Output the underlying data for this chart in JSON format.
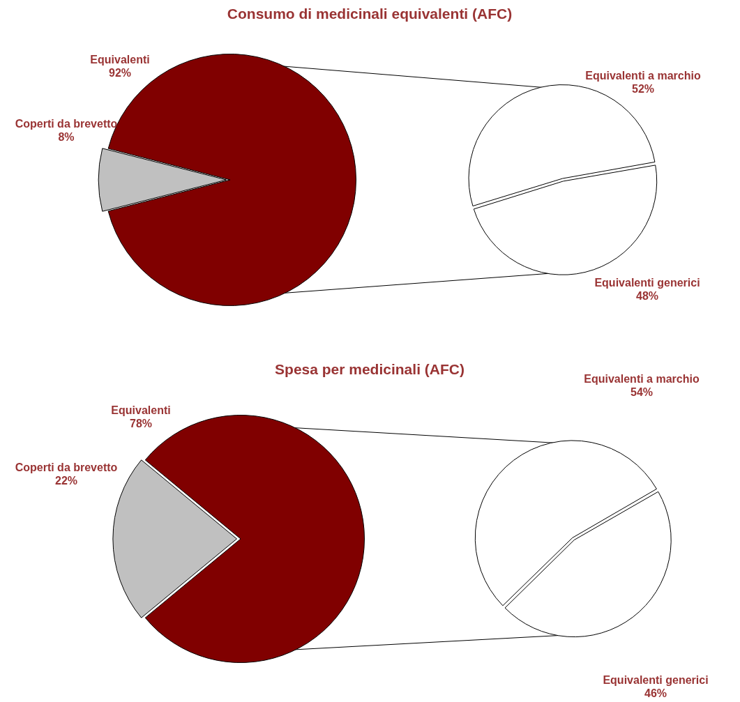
{
  "chart_data": [
    {
      "type": "pie",
      "title": "Consumo di medicinali equivalenti (AFC)",
      "categories": [
        "Equivalenti",
        "Coperti da brevetto"
      ],
      "values": [
        92,
        8
      ],
      "colors": [
        "#800000",
        "#c0c0c0"
      ],
      "value_labels": [
        "92%",
        "8%"
      ]
    },
    {
      "type": "pie",
      "categories": [
        "Equivalenti a marchio",
        "Equivalenti generici"
      ],
      "values": [
        52,
        48
      ],
      "colors": [
        "#ffffff",
        "#ffffff"
      ],
      "value_labels": [
        "52%",
        "48%"
      ]
    },
    {
      "type": "pie",
      "title": "Spesa per medicinali (AFC)",
      "categories": [
        "Equivalenti",
        "Coperti da brevetto"
      ],
      "values": [
        78,
        22
      ],
      "colors": [
        "#800000",
        "#c0c0c0"
      ],
      "value_labels": [
        "78%",
        "22%"
      ]
    },
    {
      "type": "pie",
      "categories": [
        "Equivalenti a marchio",
        "Equivalenti generici"
      ],
      "values": [
        54,
        46
      ],
      "colors": [
        "#ffffff",
        "#ffffff"
      ],
      "value_labels": [
        "54%",
        "46%"
      ]
    }
  ]
}
